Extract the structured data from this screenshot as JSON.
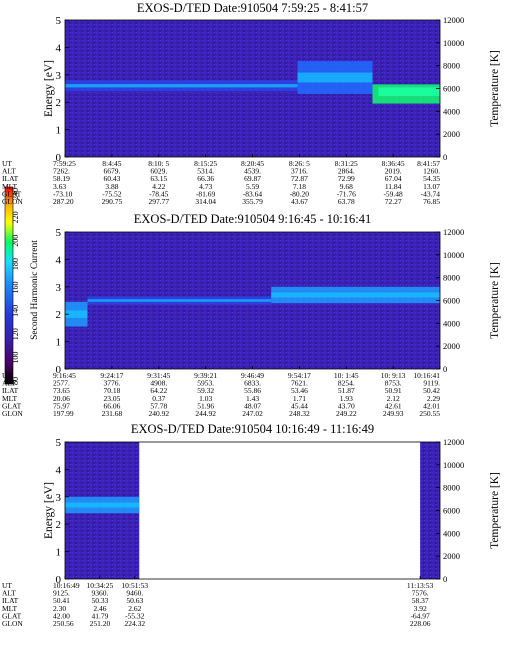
{
  "colorbar": {
    "label": "Second Harmonic Current",
    "ticks": [
      "80",
      "100",
      "120",
      "140",
      "160",
      "180",
      "200",
      "220",
      "240"
    ],
    "colors": [
      "#000000",
      "#4a0060",
      "#3a1fa8",
      "#2438e0",
      "#1d86ff",
      "#16e0ff",
      "#00ff60",
      "#ffff00",
      "#ffb000",
      "#ff0000"
    ]
  },
  "chart_data": [
    {
      "type": "heatmap",
      "title": "EXOS-D/TED   Date:910504   7:59:25 - 8:41:57",
      "ylabel": "Energy [eV]",
      "y2label": "Temperature [K]",
      "ylim": [
        0,
        5
      ],
      "y2lim": [
        0,
        12000
      ],
      "yticks": [
        "0",
        "1",
        "2",
        "3",
        "4",
        "5"
      ],
      "y2ticks": [
        "0",
        "2000",
        "4000",
        "6000",
        "8000",
        "10000",
        "12000"
      ],
      "data_start": 0.0,
      "data_end": 1.0,
      "features": [
        {
          "from": 0.0,
          "to": 0.62,
          "center": 2.6,
          "width": 0.4,
          "level": "faint"
        },
        {
          "from": 0.62,
          "to": 0.82,
          "center": 2.9,
          "width": 1.2,
          "level": "low"
        },
        {
          "from": 0.82,
          "to": 1.0,
          "center": 2.3,
          "width": 0.7,
          "level": "peak"
        }
      ],
      "ephemeris": {
        "labels": [
          "UT",
          "ALT",
          "ILAT",
          "MLT",
          "GLAT",
          "GLON"
        ],
        "columns": [
          [
            "7:59:25",
            "7262.",
            "58.19",
            "3.63",
            "-73.10",
            "287.20"
          ],
          [
            "8:4:45",
            "6679.",
            "60.43",
            "3.88",
            "-75.52",
            "290.75"
          ],
          [
            "8:10: 5",
            "6029.",
            "63.15",
            "4.22",
            "-78.45",
            "297.77"
          ],
          [
            "8:15:25",
            "5314.",
            "66.36",
            "4.73",
            "-81.69",
            "314.04"
          ],
          [
            "8:20:45",
            "4539.",
            "69.87",
            "5.59",
            "-83.64",
            "355.79"
          ],
          [
            "8:26: 5",
            "3716.",
            "72.87",
            "7.18",
            "-80.20",
            "43.67"
          ],
          [
            "8:31:25",
            "2864.",
            "72.99",
            "9.68",
            "-71.76",
            "63.78"
          ],
          [
            "8:36:45",
            "2019.",
            "67.04",
            "11.84",
            "-59.48",
            "72.27"
          ],
          [
            "8:41:57",
            "1260.",
            "54.35",
            "13.07",
            "-43.74",
            "76.85"
          ]
        ]
      }
    },
    {
      "type": "heatmap",
      "title": "EXOS-D/TED   Date:910504   9:16:45 - 10:16:41",
      "ylabel": "",
      "y2label": "Temperature [K]",
      "ylim": [
        0,
        5
      ],
      "y2lim": [
        0,
        12000
      ],
      "yticks": [
        "0",
        "1",
        "2",
        "3",
        "4",
        "5"
      ],
      "y2ticks": [
        "0",
        "2000",
        "4000",
        "6000",
        "8000",
        "10000",
        "12000"
      ],
      "data_start": 0.0,
      "data_end": 1.0,
      "features": [
        {
          "from": 0.0,
          "to": 0.06,
          "center": 2.0,
          "width": 0.9,
          "level": "mid"
        },
        {
          "from": 0.06,
          "to": 0.55,
          "center": 2.5,
          "width": 0.3,
          "level": "faint"
        },
        {
          "from": 0.55,
          "to": 1.0,
          "center": 2.7,
          "width": 0.6,
          "level": "mid"
        }
      ],
      "ephemeris": {
        "labels": [
          "UT",
          "ALT",
          "ILAT",
          "MLT",
          "GLAT",
          "GLON"
        ],
        "columns": [
          [
            "9:16:45",
            "2577.",
            "73.65",
            "20.06",
            "75.97",
            "197.99"
          ],
          [
            "9:24:17",
            "3776.",
            "70.18",
            "23.05",
            "66.06",
            "231.68"
          ],
          [
            "9:31:45",
            "4908.",
            "64.22",
            "0.37",
            "57.78",
            "240.92"
          ],
          [
            "9:39:21",
            "5953.",
            "59.32",
            "1.03",
            "51.96",
            "244.92"
          ],
          [
            "9:46:49",
            "6833.",
            "55.86",
            "1.43",
            "48.07",
            "247.02"
          ],
          [
            "9:54:17",
            "7621.",
            "53.46",
            "1.71",
            "45.44",
            "248.32"
          ],
          [
            "10: 1:45",
            "8254.",
            "51.87",
            "1.93",
            "43.70",
            "249.22"
          ],
          [
            "10: 9:13",
            "8753.",
            "50.91",
            "2.12",
            "42.61",
            "249.93"
          ],
          [
            "10:16:41",
            "9119.",
            "50.42",
            "2.29",
            "42.01",
            "250.55"
          ]
        ]
      }
    },
    {
      "type": "heatmap",
      "title": "EXOS-D/TED   Date:910504   10:16:49 - 11:16:49",
      "ylabel": "Energy [eV]",
      "y2label": "Temperature [K]",
      "ylim": [
        0,
        5
      ],
      "y2lim": [
        0,
        12000
      ],
      "yticks": [
        "0",
        "1",
        "2",
        "3",
        "4",
        "5"
      ],
      "y2ticks": [
        "0",
        "2000",
        "4000",
        "6000",
        "8000",
        "10000",
        "12000"
      ],
      "data_start": 0.0,
      "data_end": 0.198,
      "data_start2": 0.947,
      "features": [
        {
          "from": 0.0,
          "to": 0.198,
          "center": 2.7,
          "width": 0.6,
          "level": "mid"
        }
      ],
      "ephemeris": {
        "labels": [
          "UT",
          "ALT",
          "ILAT",
          "MLT",
          "GLAT",
          "GLON"
        ],
        "columns": [
          [
            "10:16:49",
            "9125.",
            "50.41",
            "2.30",
            "42.00",
            "250.56"
          ],
          [
            "10:34:25",
            "9360.",
            "50.33",
            "2.46",
            "41.79",
            "251.20"
          ],
          [
            "10:51:53",
            "9460.",
            "50.63",
            "2.62",
            "-55.32",
            "224.32"
          ],
          [
            "11:13:53",
            "7576.",
            "58.37",
            "3.92",
            "-64.97",
            "228.06"
          ]
        ]
      }
    }
  ]
}
